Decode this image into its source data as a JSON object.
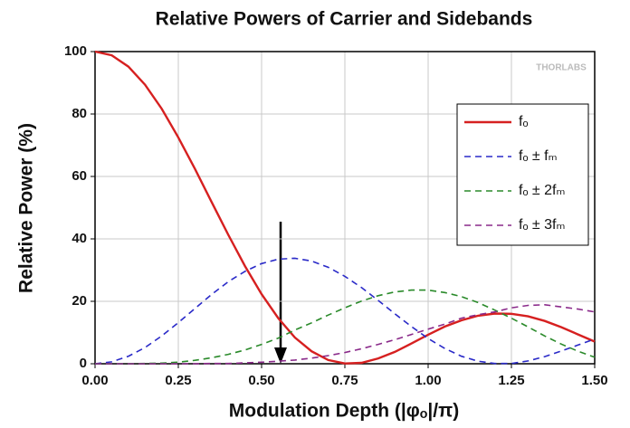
{
  "chart_data": {
    "type": "line",
    "title": "Relative Powers of Carrier and Sidebands",
    "xlabel": "Modulation Depth (|φₒ|/π)",
    "ylabel": "Relative Power (%)",
    "annotation": "THORLABS",
    "x": [
      0,
      0.05,
      0.1,
      0.15,
      0.2,
      0.25,
      0.3,
      0.35,
      0.4,
      0.45,
      0.5,
      0.55,
      0.6,
      0.65,
      0.7,
      0.75,
      0.8,
      0.85,
      0.9,
      0.95,
      1.0,
      1.05,
      1.1,
      1.15,
      1.2,
      1.25,
      1.3,
      1.35,
      1.4,
      1.45,
      1.5
    ],
    "series": [
      {
        "name": "fₒ",
        "color": "#d62020",
        "dash": false,
        "values": [
          100,
          98.8,
          95.2,
          89.4,
          81.7,
          72.5,
          62.4,
          51.8,
          41.3,
          31.3,
          22.3,
          14.6,
          8.4,
          4.0,
          1.2,
          0.1,
          0.3,
          1.7,
          3.8,
          6.5,
          9.3,
          11.9,
          13.9,
          15.4,
          16.1,
          16.0,
          15.2,
          13.7,
          11.7,
          9.4,
          7.1
        ]
      },
      {
        "name": "fₒ ± fₘ",
        "color": "#2a2ac8",
        "dash": true,
        "values": [
          0,
          0.6,
          2.4,
          5.2,
          8.9,
          13.2,
          17.7,
          22.2,
          26.3,
          29.6,
          32.1,
          33.5,
          33.8,
          32.9,
          30.9,
          28.0,
          24.4,
          20.3,
          16.0,
          11.9,
          8.1,
          4.9,
          2.4,
          0.8,
          0.1,
          0.1,
          0.9,
          2.3,
          4.1,
          6.0,
          7.9
        ]
      },
      {
        "name": "fₒ ± 2fₘ",
        "color": "#2a8a2a",
        "dash": true,
        "values": [
          0,
          0.0,
          0.0,
          0.1,
          0.2,
          0.5,
          1.1,
          1.9,
          3.0,
          4.4,
          6.2,
          8.2,
          10.8,
          13.1,
          15.6,
          17.9,
          20.1,
          21.8,
          23.0,
          23.6,
          23.6,
          22.8,
          21.5,
          19.6,
          17.2,
          14.6,
          11.8,
          8.9,
          6.3,
          4.0,
          2.1
        ]
      },
      {
        "name": "fₒ ± 3fₘ",
        "color": "#8a2a8a",
        "dash": true,
        "values": [
          0,
          0,
          0,
          0,
          0,
          0.0,
          0.0,
          0.1,
          0.1,
          0.3,
          0.5,
          0.8,
          1.2,
          1.8,
          2.6,
          3.6,
          4.8,
          6.2,
          7.7,
          9.4,
          11.1,
          12.7,
          14.6,
          15.7,
          16.6,
          17.9,
          18.7,
          18.9,
          18.2,
          17.5,
          16.6
        ]
      }
    ],
    "xlim": [
      0,
      1.5
    ],
    "xticks": [
      {
        "value": 0,
        "label": "0.00"
      },
      {
        "value": 0.25,
        "label": "0.25"
      },
      {
        "value": 0.5,
        "label": "0.50"
      },
      {
        "value": 0.75,
        "label": "0.75"
      },
      {
        "value": 1.0,
        "label": "1.00"
      },
      {
        "value": 1.25,
        "label": "1.25"
      },
      {
        "value": 1.5,
        "label": "1.50"
      }
    ],
    "ylim": [
      0,
      100
    ],
    "yticks": [
      0,
      20,
      40,
      60,
      80,
      100
    ],
    "grid": true,
    "legend": "upper right"
  }
}
